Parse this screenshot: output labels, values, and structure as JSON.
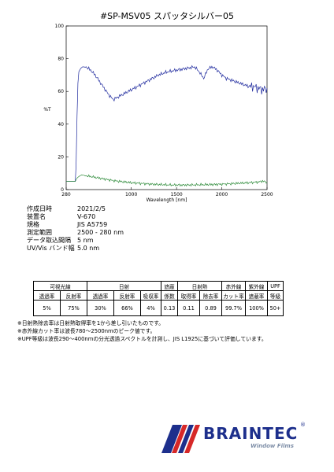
{
  "header": {
    "title": "#SP-MSV05  スパッタシルバー05"
  },
  "chart_data": {
    "type": "line",
    "ylabel": "%T",
    "xlabel": "Wavelength [nm]",
    "xlim": [
      280,
      2500
    ],
    "ylim": [
      0,
      100
    ],
    "x_ticks": [
      "280",
      "1000",
      "1500",
      "2000",
      "2500"
    ],
    "x_tick_values": [
      280,
      1000,
      1500,
      2000,
      2500
    ],
    "y_ticks": [
      "0",
      "20",
      "40",
      "60",
      "80",
      "100"
    ],
    "y_tick_values": [
      0,
      20,
      40,
      60,
      80,
      100
    ],
    "grid": false,
    "series": [
      {
        "color": "#1f2a9e",
        "x": [
          280,
          350,
          380,
          390,
          400,
          410,
          420,
          440,
          460,
          500,
          550,
          600,
          650,
          700,
          750,
          800,
          900,
          1000,
          1100,
          1200,
          1300,
          1400,
          1500,
          1600,
          1700,
          1750,
          1800,
          1850,
          1900,
          1950,
          2000,
          2050,
          2100,
          2150,
          2200,
          2250,
          2300,
          2350,
          2400,
          2450,
          2500
        ],
        "y": [
          5,
          5,
          5,
          15,
          45,
          65,
          72,
          74,
          75,
          75,
          73,
          70,
          66,
          62,
          58,
          55,
          58,
          61,
          64,
          67,
          70,
          72,
          73,
          74,
          75,
          72,
          68,
          74,
          75,
          73,
          70,
          68,
          67,
          66,
          65,
          64,
          63,
          63,
          62,
          61,
          62
        ]
      },
      {
        "color": "#2e8b3a",
        "x": [
          280,
          350,
          380,
          390,
          400,
          420,
          450,
          500,
          600,
          700,
          800,
          900,
          1000,
          1100,
          1200,
          1300,
          1400,
          1500,
          1600,
          1700,
          1800,
          1900,
          2000,
          2100,
          2200,
          2300,
          2400,
          2450,
          2500
        ],
        "y": [
          5,
          5,
          5,
          6,
          7,
          8,
          9,
          8.5,
          7.5,
          6.5,
          5.5,
          4.8,
          4.2,
          3.8,
          3.4,
          3.1,
          2.9,
          2.8,
          2.8,
          2.9,
          3.0,
          3.1,
          3.3,
          3.6,
          3.9,
          4.2,
          4.6,
          5.2,
          4.5
        ]
      }
    ]
  },
  "measurement": [
    {
      "label": "作成日時",
      "value": "2021/2/5"
    },
    {
      "label": "装置名",
      "value": "V-670"
    },
    {
      "label": "規格",
      "value": "JIS A5759"
    },
    {
      "label": "測定範囲",
      "value": "2500 - 280 nm"
    },
    {
      "label": "データ取込間隔",
      "value": "5 nm"
    },
    {
      "label": "UV/Vis バンド幅",
      "value": "5.0 nm"
    }
  ],
  "table": {
    "groups": [
      "可視光線",
      "日射",
      "遮蔽",
      "日射熱",
      "赤外線",
      "紫外線",
      "UPF"
    ],
    "subs": [
      "透過率",
      "反射率",
      "透過率",
      "反射率",
      "吸収率",
      "係数",
      "取得率",
      "除去率",
      "カット率",
      "遮蔽率",
      "等級"
    ],
    "values": [
      "5%",
      "75%",
      "30%",
      "66%",
      "4%",
      "0.13",
      "0.11",
      "0.89",
      "99.7%",
      "100%",
      "50+"
    ]
  },
  "notes": [
    "※日射熱除去率は日射熱取得率を1から差し引いたものです。",
    "※赤外線カット率は波長780～2500nmのピーク値です。",
    "※UPF等級は波長290～400nmの分光透過スペクトルを計測し、JIS L1925に基づいて評価しています。"
  ],
  "logo": {
    "brand": "BRAINTEC",
    "registered": "®",
    "tagline": "Window Films"
  }
}
